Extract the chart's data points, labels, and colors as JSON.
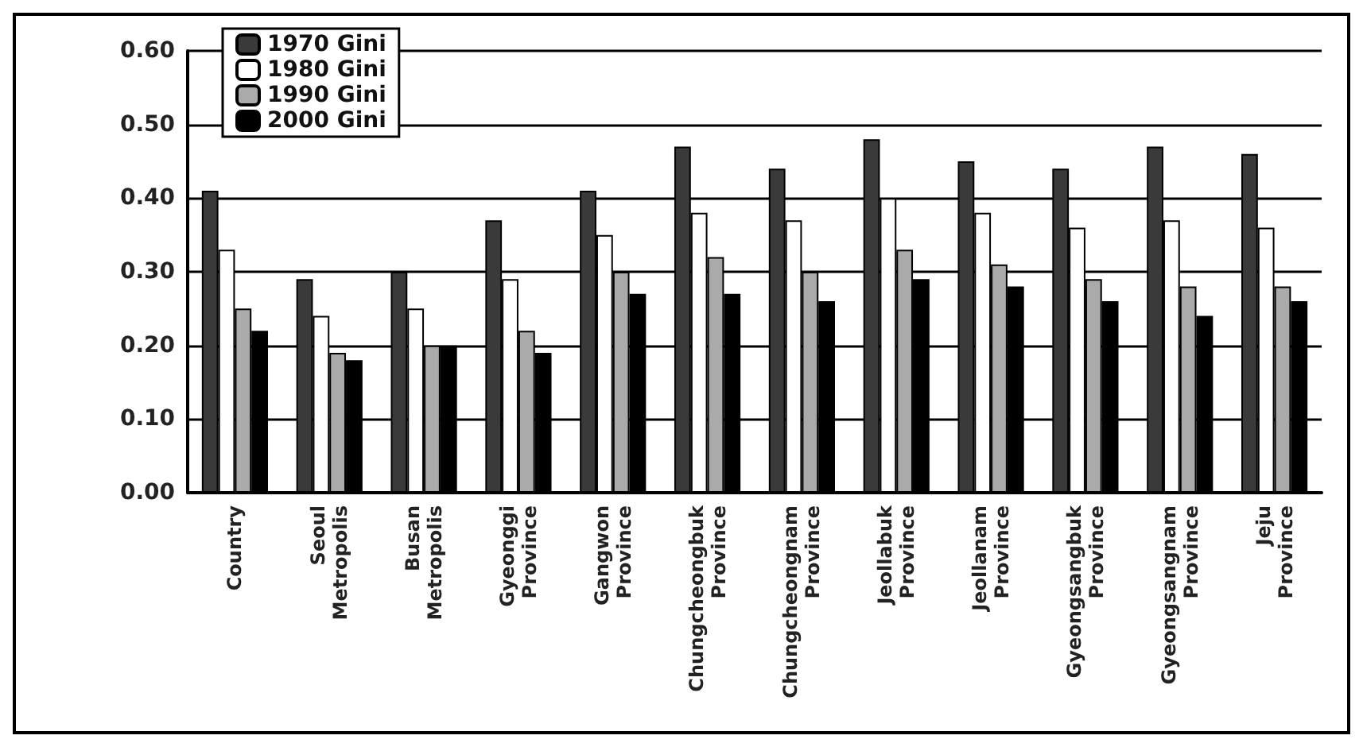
{
  "chart_data": {
    "type": "bar",
    "categories": [
      "Country",
      "Seoul Metropolis",
      "Busan Metropolis",
      "Gyeonggi Province",
      "Gangwon Province",
      "Chungcheongbuk Province",
      "Chungcheongnam Province",
      "Jeollabuk Province",
      "Jeollanam Province",
      "Gyeongsangbuk Province",
      "Gyeongsangnam Province",
      "Jeju Province"
    ],
    "series": [
      {
        "name": "1970 Gini",
        "color": "#3a3a3a",
        "values": [
          0.41,
          0.29,
          0.3,
          0.37,
          0.41,
          0.47,
          0.44,
          0.48,
          0.45,
          0.44,
          0.47,
          0.46
        ]
      },
      {
        "name": "1980 Gini",
        "color": "#ffffff",
        "values": [
          0.33,
          0.24,
          0.25,
          0.29,
          0.35,
          0.38,
          0.37,
          0.4,
          0.38,
          0.36,
          0.37,
          0.36
        ]
      },
      {
        "name": "1990 Gini",
        "color": "#aaaaaa",
        "values": [
          0.25,
          0.19,
          0.2,
          0.22,
          0.3,
          0.32,
          0.3,
          0.33,
          0.31,
          0.29,
          0.28,
          0.28
        ]
      },
      {
        "name": "2000 Gini",
        "color": "#000000",
        "values": [
          0.22,
          0.18,
          0.2,
          0.19,
          0.27,
          0.27,
          0.26,
          0.29,
          0.28,
          0.26,
          0.24,
          0.26
        ]
      }
    ],
    "ylim": [
      0,
      0.6
    ],
    "yticks": [
      {
        "value": 0,
        "label": "0.00"
      },
      {
        "value": 0.1,
        "label": "0.10"
      },
      {
        "value": 0.2,
        "label": "0.20"
      },
      {
        "value": 0.3,
        "label": "0.30"
      },
      {
        "value": 0.4,
        "label": "0.40"
      },
      {
        "value": 0.5,
        "label": "0.50"
      },
      {
        "value": 0.6,
        "label": "0.60"
      }
    ],
    "grid": "y",
    "legend": "top left"
  }
}
